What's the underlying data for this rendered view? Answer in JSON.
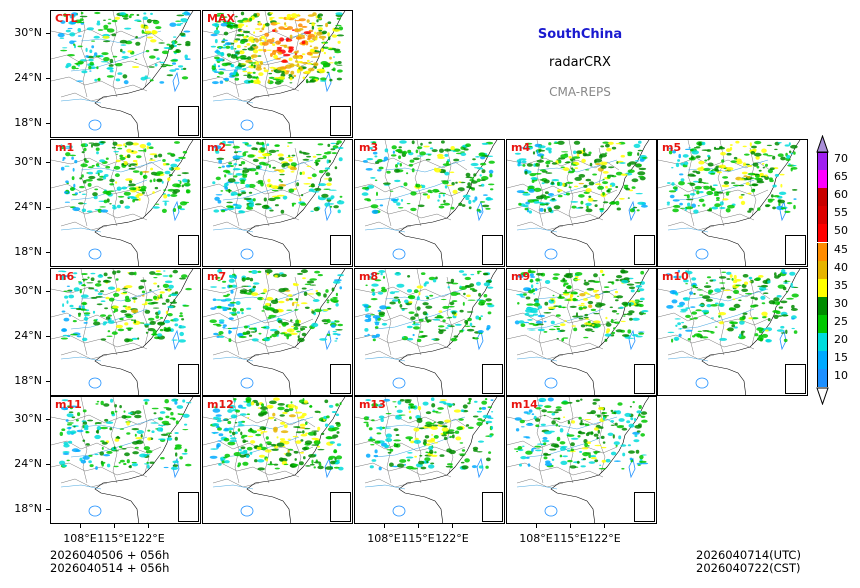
{
  "title": {
    "region": "SouthChina",
    "variable": "radarCRX",
    "system": "CMA-REPS"
  },
  "panels": [
    {
      "label": "CTL",
      "intensity": 0.35
    },
    {
      "label": "MAX",
      "intensity": 1.0
    },
    {
      "label": "m1",
      "intensity": 0.45
    },
    {
      "label": "m2",
      "intensity": 0.5
    },
    {
      "label": "m3",
      "intensity": 0.35
    },
    {
      "label": "m4",
      "intensity": 0.5
    },
    {
      "label": "m5",
      "intensity": 0.5
    },
    {
      "label": "m6",
      "intensity": 0.45
    },
    {
      "label": "m7",
      "intensity": 0.45
    },
    {
      "label": "m8",
      "intensity": 0.35
    },
    {
      "label": "m9",
      "intensity": 0.5
    },
    {
      "label": "m10",
      "intensity": 0.4
    },
    {
      "label": "m11",
      "intensity": 0.35
    },
    {
      "label": "m12",
      "intensity": 0.55
    },
    {
      "label": "m13",
      "intensity": 0.4
    },
    {
      "label": "m14",
      "intensity": 0.4
    }
  ],
  "axes": {
    "lat_labels": [
      "30°N",
      "24°N",
      "18°N"
    ],
    "lon_labels": [
      "108°E",
      "115°E",
      "122°E"
    ]
  },
  "colorbar": {
    "levels": [
      "70",
      "65",
      "60",
      "55",
      "50",
      "45",
      "40",
      "35",
      "30",
      "25",
      "20",
      "15",
      "10"
    ],
    "colors": [
      "#a020f0",
      "#ff00ff",
      "#c80000",
      "#dc0000",
      "#ff0000",
      "#ff8c00",
      "#e6b400",
      "#ffff00",
      "#008c00",
      "#00c800",
      "#00dcdc",
      "#00aaff",
      "#1e90ff"
    ],
    "over_color": "#a98ed8"
  },
  "footer": {
    "init_utc": "2026040506  +  056h",
    "init_cst": "2026040514  +  056h",
    "valid_utc": "2026040714(UTC)",
    "valid_cst": "2026040722(CST)"
  }
}
